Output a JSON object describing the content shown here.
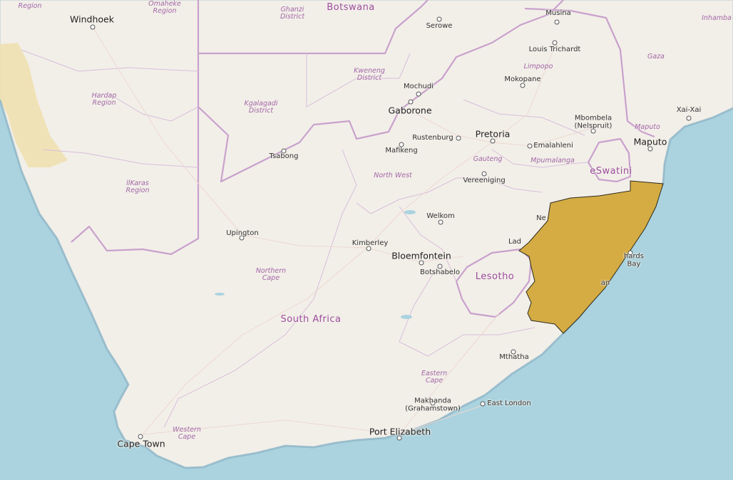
{
  "map": {
    "highlight_color": "#d4ac43",
    "countries": [
      {
        "id": "botswana",
        "label": "Botswana"
      },
      {
        "id": "south-africa",
        "label": "South Africa"
      },
      {
        "id": "lesotho",
        "label": "Lesotho"
      },
      {
        "id": "eswatini",
        "label": "eSwatini"
      }
    ],
    "regions": [
      {
        "id": "omaheke",
        "label": "Omaheke\nRegion"
      },
      {
        "id": "region-topleft",
        "label": "Region"
      },
      {
        "id": "ghanzi",
        "label": "Ghanzi\nDistrict"
      },
      {
        "id": "kweneng",
        "label": "Kweneng\nDistrict"
      },
      {
        "id": "kgalagadi",
        "label": "Kgalagadi\nDistrict"
      },
      {
        "id": "hardap",
        "label": "Hardap\nRegion"
      },
      {
        "id": "ilkaras",
        "label": "llKaras\nRegion"
      },
      {
        "id": "limpopo",
        "label": "Limpopo"
      },
      {
        "id": "gaza",
        "label": "Gaza"
      },
      {
        "id": "inhambane",
        "label": "Inhamba"
      },
      {
        "id": "maputo-prov",
        "label": "Maputo"
      },
      {
        "id": "gauteng",
        "label": "Gauteng"
      },
      {
        "id": "mpumalanga",
        "label": "Mpumalanga"
      },
      {
        "id": "north-west",
        "label": "North West"
      },
      {
        "id": "northern-cape",
        "label": "Northern\nCape"
      },
      {
        "id": "eastern-cape",
        "label": "Eastern\nCape"
      },
      {
        "id": "western-cape",
        "label": "Western\nCape"
      }
    ],
    "cities": [
      {
        "id": "windhoek",
        "label": "Windhoek"
      },
      {
        "id": "serowe",
        "label": "Serowe"
      },
      {
        "id": "musina",
        "label": "Musina"
      },
      {
        "id": "louis-trichardt",
        "label": "Louis Trichardt"
      },
      {
        "id": "mokopane",
        "label": "Mokopane"
      },
      {
        "id": "mochudi",
        "label": "Mochudi"
      },
      {
        "id": "gaborone",
        "label": "Gaborone"
      },
      {
        "id": "mbombela",
        "label": "Mbombela\n(Nelspruit)"
      },
      {
        "id": "xai-xai",
        "label": "Xai-Xai"
      },
      {
        "id": "rustenburg",
        "label": "Rustenburg"
      },
      {
        "id": "pretoria",
        "label": "Pretoria"
      },
      {
        "id": "maputo",
        "label": "Maputo"
      },
      {
        "id": "mafikeng",
        "label": "Mafikeng"
      },
      {
        "id": "emalahleni",
        "label": "Emalahleni"
      },
      {
        "id": "tsabong",
        "label": "Tsabong"
      },
      {
        "id": "vereeniging",
        "label": "Vereeniging"
      },
      {
        "id": "welkom",
        "label": "Welkom"
      },
      {
        "id": "newcastle",
        "label": "Ne"
      },
      {
        "id": "upington",
        "label": "Upington"
      },
      {
        "id": "kimberley",
        "label": "Kimberley"
      },
      {
        "id": "ladysmith",
        "label": "Lad"
      },
      {
        "id": "bloemfontein",
        "label": "Bloemfontein"
      },
      {
        "id": "richards-bay",
        "label": "hards\nBay"
      },
      {
        "id": "botshabelo",
        "label": "Botshabelo"
      },
      {
        "id": "durban",
        "label": "an"
      },
      {
        "id": "mthatha",
        "label": "Mthatha"
      },
      {
        "id": "makhanda",
        "label": "Makhanda\n(Grahamstown)"
      },
      {
        "id": "east-london",
        "label": "East London"
      },
      {
        "id": "port-elizabeth",
        "label": "Port Elizabeth"
      },
      {
        "id": "cape-town",
        "label": "Cape Town"
      }
    ]
  }
}
